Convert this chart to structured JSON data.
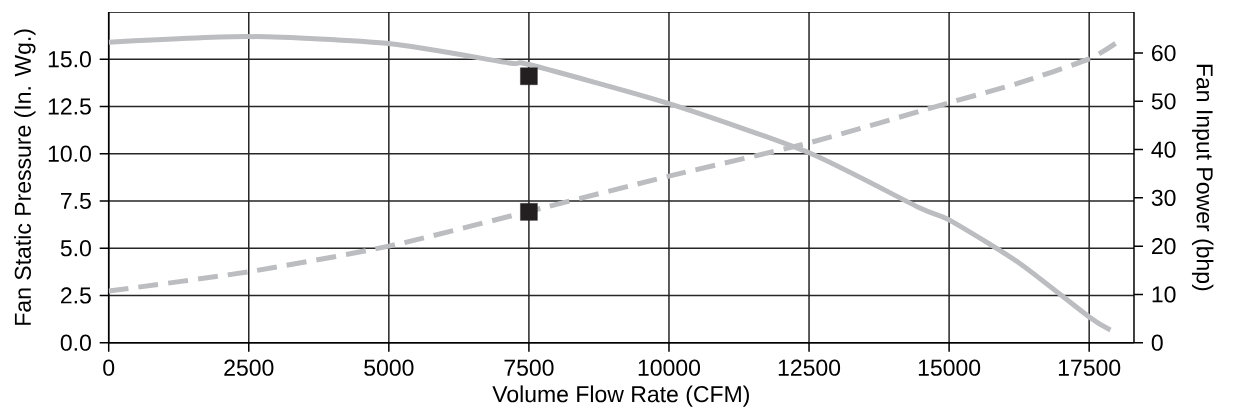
{
  "chart_data": {
    "type": "line",
    "xlabel": "Volume Flow Rate (CFM)",
    "ylabel": "Fan Static Pressure (In. Wg.)",
    "y2label": "Fan Input Power (bhp)",
    "xlim": [
      0,
      18300
    ],
    "xticks": [
      0,
      2500,
      5000,
      7500,
      10000,
      12500,
      15000,
      17500
    ],
    "ylim": [
      0,
      17.5
    ],
    "yticks": [
      {
        "value": 0,
        "label": "0.0"
      },
      {
        "value": 2.5,
        "label": "2.5"
      },
      {
        "value": 5,
        "label": "5.0"
      },
      {
        "value": 7.5,
        "label": "7.5"
      },
      {
        "value": 10,
        "label": "10.0"
      },
      {
        "value": 12.5,
        "label": "12.5"
      },
      {
        "value": 15,
        "label": "15.0"
      }
    ],
    "y2lim": [
      0,
      68.5
    ],
    "y2ticks": [
      0,
      10,
      20,
      30,
      40,
      50,
      60
    ],
    "grid": true,
    "series": [
      {
        "color": "#bcbdc0",
        "line_style": "solid",
        "marker": "none",
        "x": [
          0,
          2500,
          5000,
          7155,
          7500,
          10000,
          12500,
          14470,
          15000,
          16250,
          17500,
          17880
        ],
        "values": [
          15.9,
          16.2,
          15.83,
          14.8,
          14.72,
          12.65,
          10.05,
          7.14,
          6.5,
          4.22,
          1.36,
          0.67
        ]
      },
      {
        "axis": "y2",
        "color": "#bcbdc0",
        "line_style": "dashed",
        "marker": "none",
        "x": [
          0,
          2500,
          5000,
          7500,
          10000,
          12500,
          15000,
          16250,
          17500,
          17970
        ],
        "values": [
          10.7,
          14.7,
          20.0,
          27.2,
          34.5,
          41.4,
          49.7,
          53.8,
          58.8,
          62.0
        ]
      },
      {
        "type": "scatter",
        "color": "#231f20",
        "marker": "square",
        "x": [
          7500
        ],
        "values": [
          14.1
        ]
      },
      {
        "type": "scatter",
        "axis": "y2",
        "color": "#231f20",
        "marker": "square",
        "x": [
          7500
        ],
        "values": [
          27.1
        ]
      }
    ]
  }
}
